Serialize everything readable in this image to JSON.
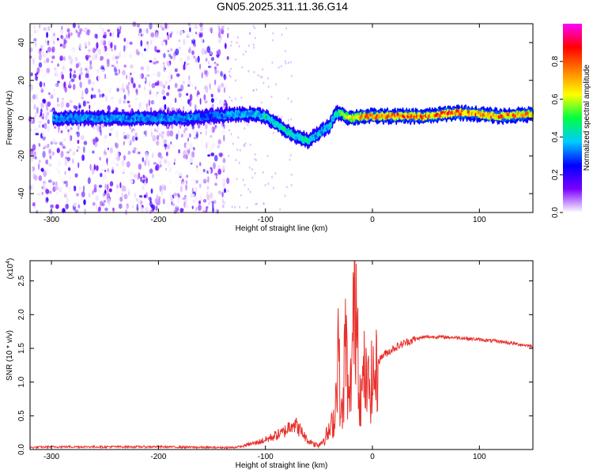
{
  "figure_title": "GN05.2025.311.11.36.G14",
  "chart_data": [
    {
      "type": "heatmap",
      "title": "",
      "xlabel": "Height of straight line (km)",
      "ylabel": "Frequency (Hz)",
      "xlim": [
        -320,
        150
      ],
      "ylim": [
        -50,
        50
      ],
      "xticks": [
        -300,
        -200,
        -100,
        0,
        100
      ],
      "yticks": [
        -40,
        -20,
        0,
        20,
        40
      ],
      "grid": false,
      "colorbar": {
        "label": "Normalized spectral amplitude",
        "range": [
          0.0,
          1.0
        ],
        "ticks": [
          0.0,
          0.2,
          0.4,
          0.6,
          0.8
        ],
        "colormap": "rainbow",
        "colors": [
          "#ffffff",
          "#7a00ff",
          "#0000ff",
          "#00ccff",
          "#00ff40",
          "#ffff00",
          "#ff8000",
          "#ff0000",
          "#ff00ff"
        ]
      },
      "ridge": {
        "x": [
          -300,
          -250,
          -200,
          -170,
          -150,
          -130,
          -110,
          -100,
          -90,
          -80,
          -70,
          -60,
          -55,
          -50,
          -45,
          -40,
          -35,
          -30,
          -25,
          -20,
          -10,
          0,
          20,
          50,
          80,
          100,
          120,
          150
        ],
        "y": [
          0,
          0,
          0,
          0,
          1,
          2,
          2,
          1,
          -3,
          -7,
          -10,
          -12,
          -10,
          -8,
          -6,
          -4,
          2,
          3,
          1,
          0,
          1,
          1,
          1,
          1,
          3,
          2,
          1,
          2
        ],
        "peak_amplitude": [
          0.35,
          0.35,
          0.35,
          0.35,
          0.3,
          0.4,
          0.4,
          0.45,
          0.45,
          0.45,
          0.45,
          0.45,
          0.4,
          0.4,
          0.4,
          0.4,
          0.5,
          0.5,
          0.6,
          0.7,
          0.75,
          0.8,
          0.8,
          0.8,
          0.85,
          0.8,
          0.8,
          0.75
        ]
      },
      "noise_region_x": [
        -320,
        -135
      ]
    },
    {
      "type": "line",
      "title": "",
      "xlabel": "Height of straight line (km)",
      "ylabel": "SNR (10 * v/v)",
      "y_multiplier": "(x10",
      "y_multiplier_exp": "4",
      "y_multiplier_close": ")",
      "xlim": [
        -320,
        150
      ],
      "ylim": [
        0,
        2.8
      ],
      "xticks": [
        -300,
        -200,
        -100,
        0,
        100
      ],
      "yticks": [
        0.0,
        0.5,
        1.0,
        1.5,
        2.0,
        2.5
      ],
      "grid": false,
      "series": [
        {
          "color": "#e8302c",
          "x": [
            -320,
            -300,
            -250,
            -200,
            -150,
            -130,
            -120,
            -110,
            -100,
            -90,
            -85,
            -80,
            -75,
            -70,
            -65,
            -60,
            -50,
            -40,
            -35,
            -32,
            -30,
            -28,
            -25,
            -22,
            -20,
            -18,
            -15,
            -12,
            -10,
            -8,
            -5,
            0,
            5,
            10,
            20,
            30,
            40,
            50,
            60,
            80,
            100,
            120,
            150
          ],
          "y": [
            0.03,
            0.04,
            0.04,
            0.04,
            0.03,
            0.03,
            0.05,
            0.08,
            0.12,
            0.18,
            0.2,
            0.25,
            0.35,
            0.28,
            0.2,
            0.1,
            0.08,
            0.3,
            0.55,
            1.9,
            0.7,
            0.5,
            1.95,
            0.6,
            1.2,
            2.05,
            2.78,
            1.0,
            0.85,
            1.3,
            1.0,
            1.15,
            1.3,
            1.4,
            1.5,
            1.58,
            1.64,
            1.67,
            1.67,
            1.66,
            1.63,
            1.6,
            1.53
          ]
        }
      ]
    }
  ]
}
